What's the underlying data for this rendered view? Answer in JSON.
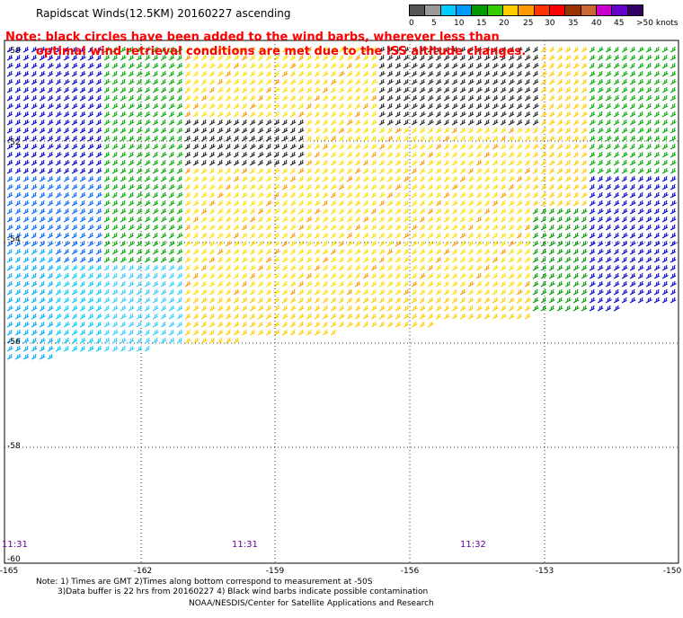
{
  "title": "Rapidscat Winds(12.5KM) 20160227 ascending",
  "note_line1": "Note: black circles have been added to the wind barbs, wherever less than",
  "note_line2": "optimal wind retrieval conditions are met due to the ISS altitude changes.",
  "legend": {
    "labels": [
      "0",
      "5",
      "10",
      "15",
      "20",
      "25",
      "30",
      "35",
      "40",
      "45",
      ">50 knots"
    ],
    "colors": [
      "#555555",
      "#999999",
      "#00ccff",
      "#0099ff",
      "#009900",
      "#33cc00",
      "#ffcc00",
      "#ff9900",
      "#ff3300",
      "#ff0000",
      "#993300",
      "#cc6633",
      "#cc00cc",
      "#6600cc",
      "#330066"
    ]
  },
  "map": {
    "lat_labels": [
      "-50",
      "-52",
      "-54",
      "-56",
      "-58",
      "-60"
    ],
    "lon_labels": [
      "-165",
      "-162",
      "-159",
      "-156",
      "-153",
      "-150"
    ],
    "time_labels": [
      "11:31",
      "11:31",
      "11:32"
    ]
  },
  "footer": {
    "line1": "Note: 1) Times are GMT 2)Times along bottom correspond to measurement at -50S",
    "line2": "3)Data buffer is 22 hrs from 20160227 4) Black wind barbs indicate possible contamination",
    "credit": "NOAA/NESDIS/Center for Satellite Applications and Research"
  }
}
